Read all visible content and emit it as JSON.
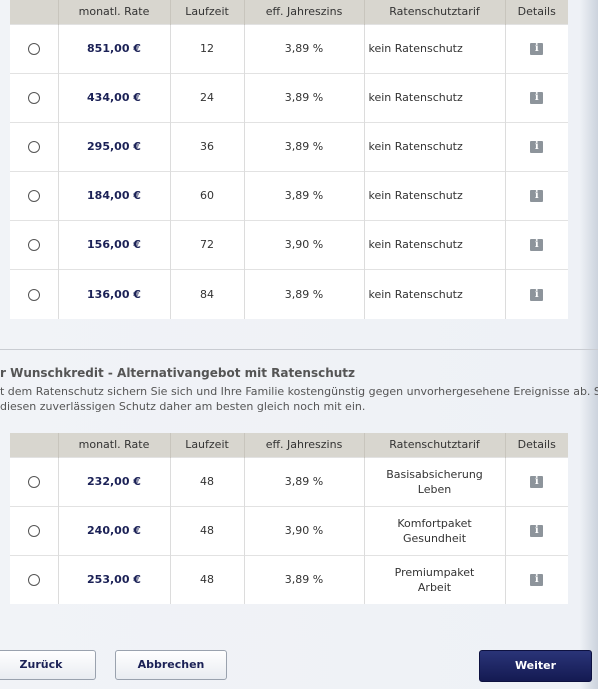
{
  "table1": {
    "headers": [
      "",
      "monatl. Rate",
      "Laufzeit",
      "eff. Jahreszins",
      "Ratenschutztarif",
      "Details"
    ],
    "rows": [
      {
        "rate": "851,00 €",
        "laufzeit": "12",
        "zins": "3,89 %",
        "tarif": "kein Ratenschutz"
      },
      {
        "rate": "434,00 €",
        "laufzeit": "24",
        "zins": "3,89 %",
        "tarif": "kein Ratenschutz"
      },
      {
        "rate": "295,00 €",
        "laufzeit": "36",
        "zins": "3,89 %",
        "tarif": "kein Ratenschutz"
      },
      {
        "rate": "184,00 €",
        "laufzeit": "60",
        "zins": "3,89 %",
        "tarif": "kein Ratenschutz"
      },
      {
        "rate": "156,00 €",
        "laufzeit": "72",
        "zins": "3,90 %",
        "tarif": "kein Ratenschutz"
      },
      {
        "rate": "136,00 €",
        "laufzeit": "84",
        "zins": "3,89 %",
        "tarif": "kein Ratenschutz"
      }
    ]
  },
  "section2": {
    "title": "r Wunschkredit - Alternativangebot mit Ratenschutz",
    "desc_line1": "t dem Ratenschutz sichern Sie sich und Ihre Familie kostengünstig gegen unvorhergesehene Ereignisse ab. Schließen",
    "desc_line2": " diesen zuverlässigen Schutz daher am besten gleich noch mit ein."
  },
  "table2": {
    "headers": [
      "",
      "monatl. Rate",
      "Laufzeit",
      "eff. Jahreszins",
      "Ratenschutztarif",
      "Details"
    ],
    "rows": [
      {
        "rate": "232,00 €",
        "laufzeit": "48",
        "zins": "3,89 %",
        "tarif1": "Basisabsicherung",
        "tarif2": "Leben"
      },
      {
        "rate": "240,00 €",
        "laufzeit": "48",
        "zins": "3,90 %",
        "tarif1": "Komfortpaket",
        "tarif2": "Gesundheit"
      },
      {
        "rate": "253,00 €",
        "laufzeit": "48",
        "zins": "3,89 %",
        "tarif1": "Premiumpaket",
        "tarif2": "Arbeit"
      }
    ]
  },
  "info_glyph": "i",
  "buttons": {
    "back": "Zurück",
    "cancel": "Abbrechen",
    "next": "Weiter"
  }
}
